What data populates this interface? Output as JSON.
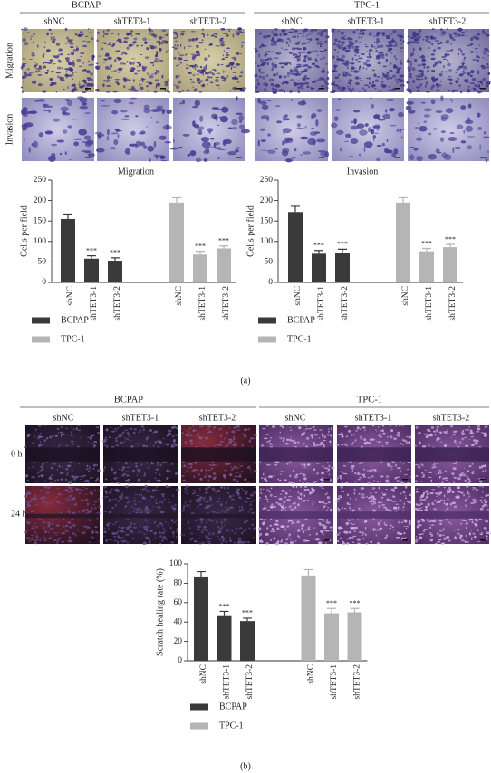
{
  "panel_a": {
    "groups": [
      "BCPAP",
      "TPC-1"
    ],
    "columns": [
      "shNC",
      "shTET3-1",
      "shTET3-2",
      "shNC",
      "shTET3-1",
      "shTET3-2"
    ],
    "rows": [
      "Migration",
      "Invasion"
    ],
    "label": "(a)"
  },
  "panel_b": {
    "groups": [
      "BCPAP",
      "TPC-1"
    ],
    "columns": [
      "shNC",
      "shTET3-1",
      "shTET3-2",
      "shNC",
      "shTET3-1",
      "shTET3-2"
    ],
    "rows": [
      "0 h",
      "24 h"
    ],
    "label": "(b)"
  },
  "chart_data": [
    {
      "type": "bar",
      "title": "Migration",
      "ylabel": "Cells per field",
      "categories": [
        "shNC",
        "shTET3-1",
        "shTET3-2",
        "shNC",
        "shTET3-1",
        "shTET3-2"
      ],
      "series": [
        {
          "name": "BCPAP",
          "color": "#3a3a3a",
          "values": [
            155,
            58,
            53,
            null,
            null,
            null
          ],
          "errors": [
            12,
            7,
            7,
            null,
            null,
            null
          ],
          "annotations": [
            null,
            "***",
            "***",
            null,
            null,
            null
          ]
        },
        {
          "name": "TPC-1",
          "color": "#b5b5b5",
          "values": [
            null,
            null,
            null,
            195,
            68,
            83
          ],
          "errors": [
            null,
            null,
            null,
            12,
            8,
            6
          ],
          "annotations": [
            null,
            null,
            null,
            null,
            "***",
            "***"
          ]
        }
      ],
      "ylim": [
        0,
        250
      ],
      "yticks": [
        0,
        50,
        100,
        150,
        200,
        250
      ]
    },
    {
      "type": "bar",
      "title": "Invasion",
      "ylabel": "Cells per field",
      "categories": [
        "shNC",
        "shTET3-1",
        "shTET3-2",
        "shNC",
        "shTET3-1",
        "shTET3-2"
      ],
      "series": [
        {
          "name": "BCPAP",
          "color": "#3a3a3a",
          "values": [
            172,
            70,
            72,
            null,
            null,
            null
          ],
          "errors": [
            14,
            8,
            9,
            null,
            null,
            null
          ],
          "annotations": [
            null,
            "***",
            "***",
            null,
            null,
            null
          ]
        },
        {
          "name": "TPC-1",
          "color": "#b5b5b5",
          "values": [
            null,
            null,
            null,
            195,
            76,
            86
          ],
          "errors": [
            null,
            null,
            null,
            12,
            7,
            7
          ],
          "annotations": [
            null,
            null,
            null,
            null,
            "***",
            "***"
          ]
        }
      ],
      "ylim": [
        0,
        250
      ],
      "yticks": [
        0,
        50,
        100,
        150,
        200,
        250
      ]
    },
    {
      "type": "bar",
      "ylabel": "Scratch healing rate (%)",
      "categories": [
        "shNC",
        "shTET3-1",
        "shTET3-2",
        "shNC",
        "shTET3-1",
        "shTET3-2"
      ],
      "series": [
        {
          "name": "BCPAP",
          "color": "#3a3a3a",
          "values": [
            87,
            47,
            41,
            null,
            null,
            null
          ],
          "errors": [
            5,
            4,
            3,
            null,
            null,
            null
          ],
          "annotations": [
            null,
            "***",
            "***",
            null,
            null,
            null
          ]
        },
        {
          "name": "TPC-1",
          "color": "#b5b5b5",
          "values": [
            null,
            null,
            null,
            88,
            49,
            50
          ],
          "errors": [
            null,
            null,
            null,
            6,
            5,
            4
          ],
          "annotations": [
            null,
            null,
            null,
            null,
            "***",
            "***"
          ]
        }
      ],
      "ylim": [
        0,
        100
      ],
      "yticks": [
        0,
        20,
        40,
        60,
        80,
        100
      ]
    }
  ]
}
